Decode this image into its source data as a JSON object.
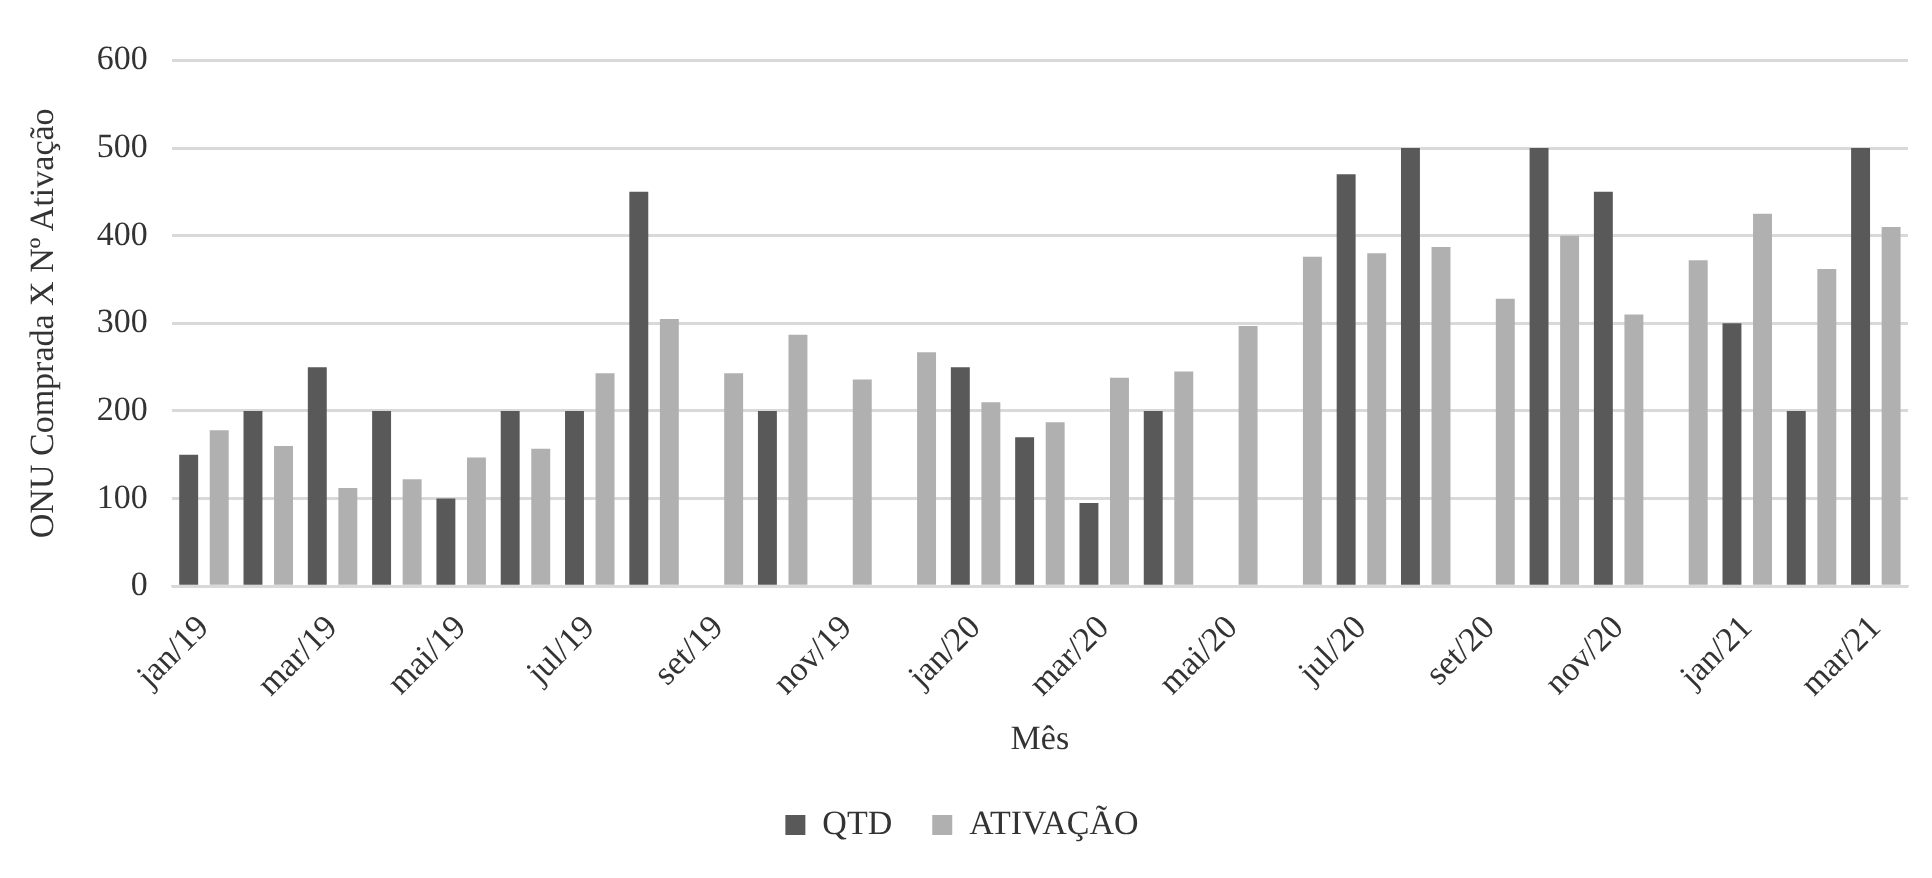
{
  "chart_data": {
    "type": "bar",
    "xlabel": "Mês",
    "ylabel": "ONU Comprada X Nº Ativação",
    "categories": [
      "jan/19",
      null,
      "mar/19",
      null,
      "mai/19",
      null,
      "jul/19",
      null,
      "set/19",
      null,
      "nov/19",
      null,
      "jan/20",
      null,
      "mar/20",
      null,
      "mai/20",
      null,
      "jul/20",
      null,
      "set/20",
      null,
      "nov/20",
      null,
      "jan/21",
      null,
      "mar/21"
    ],
    "series": [
      {
        "name": "QTD",
        "color": "#595959",
        "values": [
          150,
          200,
          250,
          200,
          100,
          200,
          200,
          450,
          null,
          200,
          null,
          null,
          250,
          170,
          95,
          200,
          null,
          null,
          470,
          500,
          null,
          500,
          450,
          null,
          300,
          200,
          500
        ]
      },
      {
        "name": "ATIVAÇÃO",
        "color": "#b0b0b0",
        "values": [
          178,
          160,
          112,
          122,
          147,
          157,
          243,
          305,
          243,
          287,
          236,
          267,
          210,
          187,
          238,
          245,
          297,
          376,
          380,
          387,
          328,
          400,
          310,
          372,
          425,
          362,
          410
        ]
      }
    ],
    "ylim": [
      0,
      600
    ],
    "yticks": [
      0,
      100,
      200,
      300,
      400,
      500,
      600
    ],
    "grid": "y",
    "legend": "bottom"
  }
}
